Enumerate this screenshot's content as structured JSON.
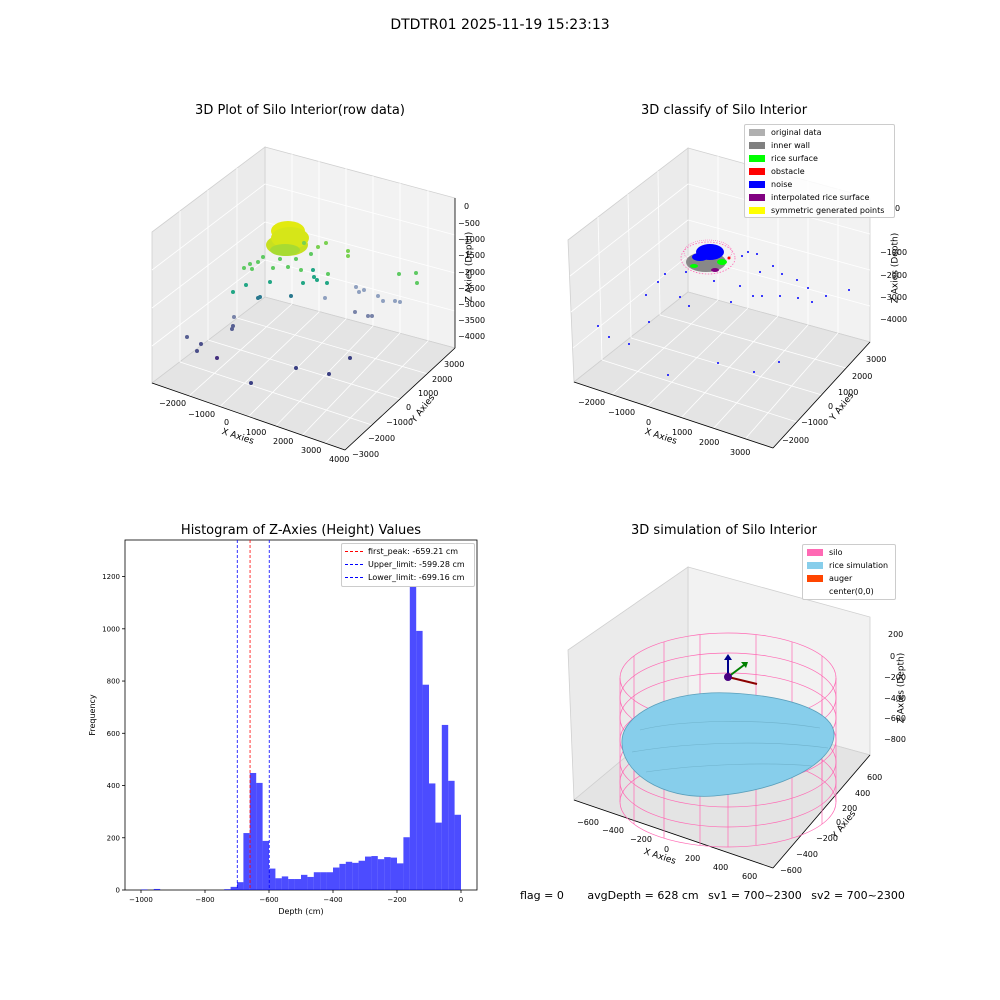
{
  "page": {
    "suptitle": "DTDTR01 2025-11-19 15:23:13"
  },
  "chart_data": [
    {
      "type": "scatter",
      "title": "3D Plot of Silo Interior(row data)",
      "xlabel": "X Axies",
      "ylabel": "Y Axies",
      "zlabel": "Z Axies (Depth)",
      "xticks": [
        "−2000",
        "−1000",
        "0",
        "1000",
        "2000",
        "3000",
        "4000"
      ],
      "yticks": [
        "−3000",
        "−2000",
        "−1000",
        "0",
        "1000",
        "2000",
        "3000"
      ],
      "zticks": [
        "0",
        "−500",
        "−1000",
        "−1500",
        "−2000",
        "−2500",
        "−3000",
        "−3500",
        "−4000"
      ]
    },
    {
      "type": "scatter",
      "title": "3D classify of Silo Interior",
      "xlabel": "X Axies",
      "ylabel": "Y Axies",
      "zlabel": "Z Axies (Depth)",
      "xticks": [
        "−2000",
        "−1000",
        "0",
        "1000",
        "2000",
        "3000"
      ],
      "yticks": [
        "−2000",
        "−1000",
        "0",
        "1000",
        "2000",
        "3000"
      ],
      "zticks": [
        "0",
        "−1000",
        "−2000",
        "−3000",
        "−4000"
      ],
      "legend": [
        {
          "label": "original data",
          "color": "#b0b0b0"
        },
        {
          "label": "inner wall",
          "color": "#808080"
        },
        {
          "label": "rice surface",
          "color": "#00ff00"
        },
        {
          "label": "obstacle",
          "color": "#ff0000"
        },
        {
          "label": "noise",
          "color": "#0000ff"
        },
        {
          "label": "interpolated rice surface",
          "color": "#800080"
        },
        {
          "label": "symmetric generated points",
          "color": "#ffff00"
        }
      ]
    },
    {
      "type": "bar",
      "title": "Histogram of Z-Axies (Height) Values",
      "xlabel": "Depth (cm)",
      "ylabel": "Frequency",
      "xlim": [
        -1050,
        50
      ],
      "ylim": [
        0,
        1340
      ],
      "xticks": [
        -1000,
        -800,
        -600,
        -400,
        -200,
        0
      ],
      "yticks": [
        0,
        200,
        400,
        600,
        800,
        1000,
        1200
      ],
      "bar_color": "#0000ff",
      "bins": [
        {
          "start": -1000,
          "end": -980,
          "value": 2
        },
        {
          "start": -960,
          "end": -940,
          "value": 4
        },
        {
          "start": -740,
          "end": -720,
          "value": 3
        },
        {
          "start": -720,
          "end": -700,
          "value": 12
        },
        {
          "start": -700,
          "end": -680,
          "value": 30
        },
        {
          "start": -680,
          "end": -660,
          "value": 218
        },
        {
          "start": -660,
          "end": -640,
          "value": 448
        },
        {
          "start": -640,
          "end": -620,
          "value": 410
        },
        {
          "start": -620,
          "end": -600,
          "value": 188
        },
        {
          "start": -600,
          "end": -580,
          "value": 82
        },
        {
          "start": -580,
          "end": -560,
          "value": 45
        },
        {
          "start": -560,
          "end": -540,
          "value": 52
        },
        {
          "start": -540,
          "end": -520,
          "value": 42
        },
        {
          "start": -520,
          "end": -500,
          "value": 42
        },
        {
          "start": -500,
          "end": -480,
          "value": 58
        },
        {
          "start": -480,
          "end": -460,
          "value": 50
        },
        {
          "start": -460,
          "end": -440,
          "value": 68
        },
        {
          "start": -440,
          "end": -420,
          "value": 68
        },
        {
          "start": -420,
          "end": -400,
          "value": 68
        },
        {
          "start": -400,
          "end": -380,
          "value": 86
        },
        {
          "start": -380,
          "end": -360,
          "value": 100
        },
        {
          "start": -360,
          "end": -340,
          "value": 108
        },
        {
          "start": -340,
          "end": -320,
          "value": 104
        },
        {
          "start": -320,
          "end": -300,
          "value": 112
        },
        {
          "start": -300,
          "end": -280,
          "value": 128
        },
        {
          "start": -280,
          "end": -260,
          "value": 130
        },
        {
          "start": -260,
          "end": -240,
          "value": 118
        },
        {
          "start": -240,
          "end": -220,
          "value": 126
        },
        {
          "start": -220,
          "end": -200,
          "value": 124
        },
        {
          "start": -200,
          "end": -180,
          "value": 102
        },
        {
          "start": -180,
          "end": -160,
          "value": 202
        },
        {
          "start": -160,
          "end": -140,
          "value": 1282
        },
        {
          "start": -140,
          "end": -120,
          "value": 992
        },
        {
          "start": -120,
          "end": -100,
          "value": 786
        },
        {
          "start": -100,
          "end": -80,
          "value": 408
        },
        {
          "start": -80,
          "end": -60,
          "value": 258
        },
        {
          "start": -60,
          "end": -40,
          "value": 632
        },
        {
          "start": -40,
          "end": -20,
          "value": 418
        },
        {
          "start": -20,
          "end": 0,
          "value": 288
        }
      ],
      "lines": [
        {
          "label": "first_peak: -659.21 cm",
          "x": -659.21,
          "color": "#ff0000"
        },
        {
          "label": "Upper_limit: -599.28 cm",
          "x": -599.28,
          "color": "#0000ff"
        },
        {
          "label": "Lower_limit: -699.16 cm",
          "x": -699.16,
          "color": "#0000ff"
        }
      ]
    },
    {
      "type": "scatter",
      "title": "3D simulation of Silo Interior",
      "xlabel": "X Axies",
      "ylabel": "Y Axies",
      "zlabel": "Z Axies (Depth)",
      "xticks": [
        "−600",
        "−400",
        "−200",
        "0",
        "200",
        "400",
        "600"
      ],
      "yticks": [
        "−600",
        "−400",
        "−200",
        "0",
        "200",
        "400",
        "600"
      ],
      "zticks": [
        "200",
        "0",
        "−200",
        "−400",
        "−600",
        "−800"
      ],
      "legend": [
        {
          "label": "silo",
          "color": "#ff69b4"
        },
        {
          "label": "rice simulation",
          "color": "#87ceeb"
        },
        {
          "label": "auger",
          "color": "#ff4500"
        },
        {
          "label": "center(0,0)",
          "color": ""
        }
      ]
    }
  ],
  "status": {
    "flag": "flag = 0",
    "avg": "avgDepth = 628 cm",
    "sv1": "sv1 = 700~2300",
    "sv2": "sv2 = 700~2300"
  }
}
